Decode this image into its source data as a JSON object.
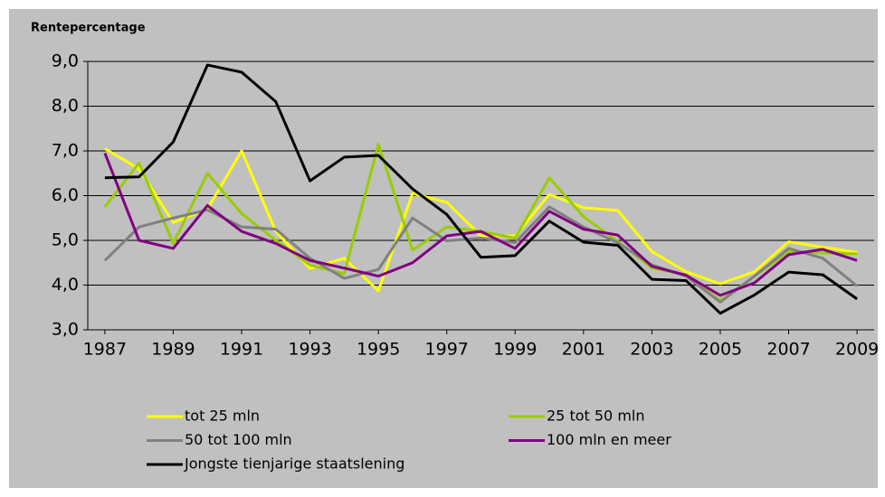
{
  "chart_data": {
    "type": "line",
    "title": "Rentepercentage",
    "x": [
      1987,
      1988,
      1989,
      1990,
      1991,
      1992,
      1993,
      1994,
      1995,
      1996,
      1997,
      1998,
      1999,
      2000,
      2001,
      2002,
      2003,
      2004,
      2005,
      2006,
      2007,
      2008,
      2009
    ],
    "xlim": [
      1986.5,
      2009.5
    ],
    "xticks": [
      1987,
      1989,
      1991,
      1993,
      1995,
      1997,
      1999,
      2001,
      2003,
      2005,
      2007,
      2009
    ],
    "ylim": [
      3,
      9
    ],
    "yticks": [
      {
        "value": 3,
        "label": "3,0"
      },
      {
        "value": 4,
        "label": "4,0"
      },
      {
        "value": 5,
        "label": "5,0"
      },
      {
        "value": 6,
        "label": "6,0"
      },
      {
        "value": 7,
        "label": "7,0"
      },
      {
        "value": 8,
        "label": "8,0"
      },
      {
        "value": 9,
        "label": "9,0"
      }
    ],
    "grid": true,
    "legend": "bottom",
    "series": [
      {
        "name": "tot 25 mln",
        "color": "#ffff00",
        "values": [
          7.05,
          6.6,
          5.4,
          5.7,
          7.0,
          5.2,
          4.37,
          4.6,
          3.87,
          6.05,
          5.85,
          5.1,
          5.1,
          6.03,
          5.73,
          5.67,
          4.75,
          4.3,
          4.03,
          4.3,
          4.97,
          4.85,
          4.73
        ]
      },
      {
        "name": "25 tot 50 mln",
        "color": "#99cc00",
        "values": [
          5.75,
          6.73,
          4.93,
          6.5,
          5.6,
          5.0,
          4.45,
          4.25,
          7.15,
          4.78,
          5.3,
          5.2,
          5.05,
          6.4,
          5.53,
          4.98,
          4.38,
          4.23,
          3.65,
          4.2,
          4.75,
          4.72,
          4.7
        ]
      },
      {
        "name": "50 tot 100 mln",
        "color": "#808080",
        "values": [
          4.55,
          5.3,
          5.5,
          5.68,
          5.3,
          5.25,
          4.6,
          4.15,
          4.35,
          5.5,
          4.99,
          5.05,
          4.95,
          5.75,
          5.3,
          4.95,
          4.45,
          4.2,
          3.62,
          4.2,
          4.82,
          4.6,
          3.98
        ]
      },
      {
        "name": "100 mln en meer",
        "color": "#800080",
        "values": [
          6.95,
          5.0,
          4.82,
          5.78,
          5.2,
          4.93,
          4.55,
          4.38,
          4.2,
          4.5,
          5.1,
          5.2,
          4.82,
          5.65,
          5.25,
          5.12,
          4.42,
          4.22,
          3.77,
          4.05,
          4.68,
          4.8,
          4.55
        ]
      },
      {
        "name": "Jongste tienjarige staatslening",
        "color": "#000000",
        "values": [
          6.4,
          6.42,
          7.2,
          8.92,
          8.76,
          8.1,
          6.33,
          6.86,
          6.9,
          6.15,
          5.58,
          4.62,
          4.66,
          5.43,
          4.96,
          4.89,
          4.13,
          4.1,
          3.37,
          3.78,
          4.29,
          4.23,
          3.69
        ]
      }
    ]
  }
}
